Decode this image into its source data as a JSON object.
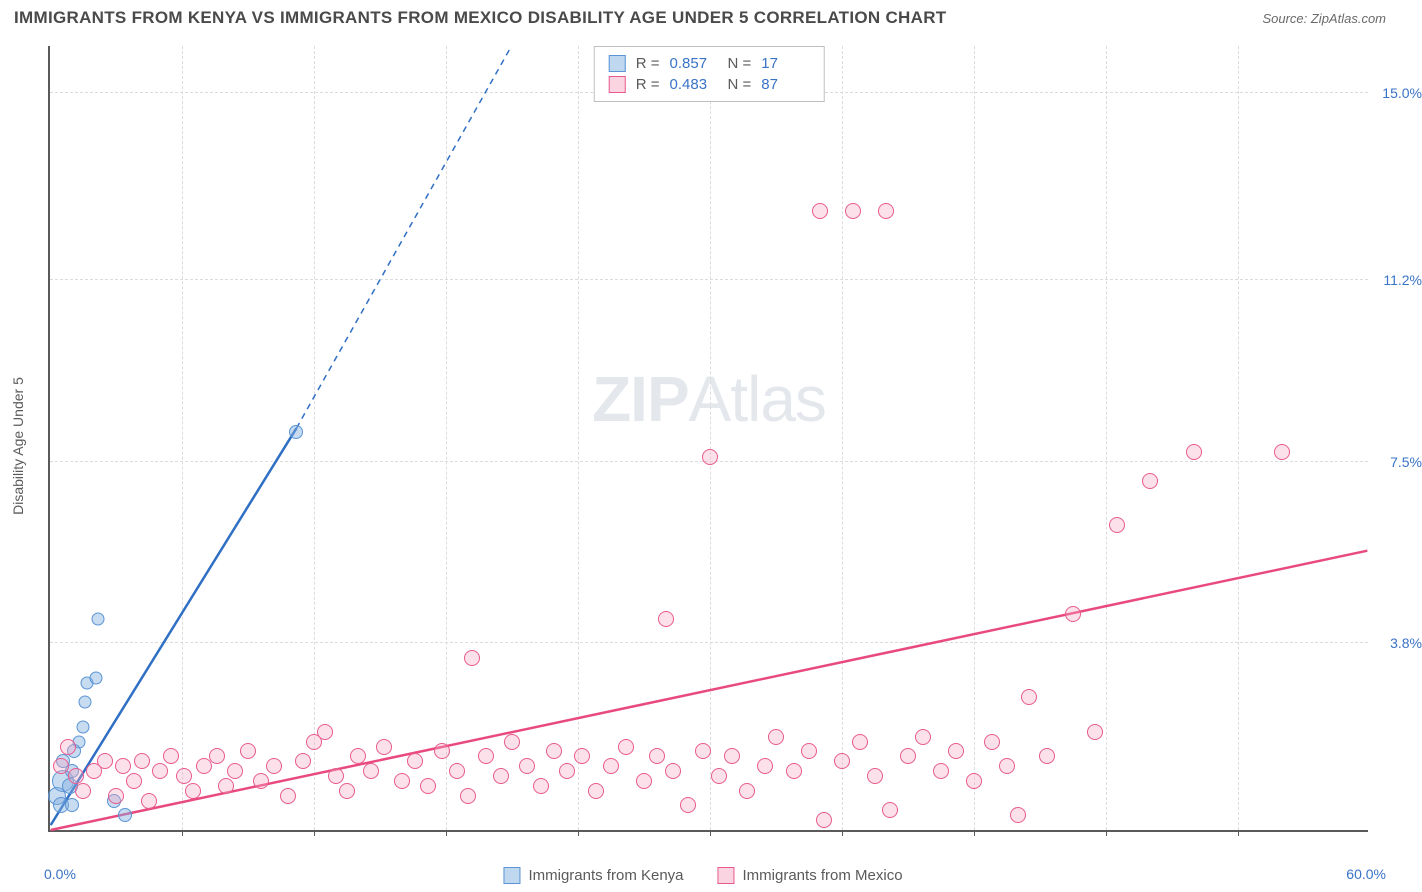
{
  "title": "IMMIGRANTS FROM KENYA VS IMMIGRANTS FROM MEXICO DISABILITY AGE UNDER 5 CORRELATION CHART",
  "source": "Source: ZipAtlas.com",
  "y_axis_label": "Disability Age Under 5",
  "watermark_a": "ZIP",
  "watermark_b": "Atlas",
  "chart": {
    "type": "scatter",
    "xlim": [
      0,
      60
    ],
    "ylim": [
      0,
      16
    ],
    "x_min_label": "0.0%",
    "x_max_label": "60.0%",
    "y_ticks": [
      {
        "v": 3.8,
        "label": "3.8%"
      },
      {
        "v": 7.5,
        "label": "7.5%"
      },
      {
        "v": 11.2,
        "label": "11.2%"
      },
      {
        "v": 15.0,
        "label": "15.0%"
      }
    ],
    "x_tick_positions": [
      6,
      12,
      18,
      24,
      30,
      36,
      42,
      48,
      54
    ],
    "background_color": "#ffffff",
    "grid_color": "#dcdcdc",
    "series": [
      {
        "name": "Immigrants from Kenya",
        "color_fill": "rgba(130,175,225,0.45)",
        "color_stroke": "#5a94d4",
        "marker_size": 14,
        "R": "0.857",
        "N": "17",
        "trend": {
          "x1": 0,
          "y1": 0.1,
          "x2": 11.2,
          "y2": 8.2,
          "x2_ext": 21,
          "y2_ext": 16,
          "color": "#2f6fc4",
          "width": 2.5
        },
        "points": [
          {
            "x": 0.3,
            "y": 0.7,
            "s": 18
          },
          {
            "x": 0.5,
            "y": 0.5,
            "s": 16
          },
          {
            "x": 0.6,
            "y": 1.0,
            "s": 22
          },
          {
            "x": 0.6,
            "y": 1.4,
            "s": 14
          },
          {
            "x": 0.9,
            "y": 0.9,
            "s": 16
          },
          {
            "x": 1.0,
            "y": 1.2,
            "s": 14
          },
          {
            "x": 1.0,
            "y": 0.5,
            "s": 14
          },
          {
            "x": 1.3,
            "y": 1.8,
            "s": 13
          },
          {
            "x": 1.5,
            "y": 2.1,
            "s": 13
          },
          {
            "x": 1.6,
            "y": 2.6,
            "s": 13
          },
          {
            "x": 1.7,
            "y": 3.0,
            "s": 13
          },
          {
            "x": 2.1,
            "y": 3.1,
            "s": 13
          },
          {
            "x": 2.2,
            "y": 4.3,
            "s": 13
          },
          {
            "x": 2.9,
            "y": 0.6,
            "s": 14
          },
          {
            "x": 3.4,
            "y": 0.3,
            "s": 14
          },
          {
            "x": 11.2,
            "y": 8.1,
            "s": 14
          },
          {
            "x": 1.1,
            "y": 1.6,
            "s": 14
          }
        ]
      },
      {
        "name": "Immigrants from Mexico",
        "color_fill": "rgba(245,170,195,0.35)",
        "color_stroke": "#e85a8f",
        "marker_size": 16,
        "R": "0.483",
        "N": "87",
        "trend": {
          "x1": 0,
          "y1": 0,
          "x2": 60,
          "y2": 5.7,
          "color": "#e84a7f",
          "width": 2.5
        },
        "points": [
          {
            "x": 0.5,
            "y": 1.3
          },
          {
            "x": 0.8,
            "y": 1.7
          },
          {
            "x": 1.2,
            "y": 1.1
          },
          {
            "x": 1.5,
            "y": 0.8
          },
          {
            "x": 2.0,
            "y": 1.2
          },
          {
            "x": 2.5,
            "y": 1.4
          },
          {
            "x": 3.0,
            "y": 0.7
          },
          {
            "x": 3.3,
            "y": 1.3
          },
          {
            "x": 3.8,
            "y": 1.0
          },
          {
            "x": 4.2,
            "y": 1.4
          },
          {
            "x": 4.5,
            "y": 0.6
          },
          {
            "x": 5.0,
            "y": 1.2
          },
          {
            "x": 5.5,
            "y": 1.5
          },
          {
            "x": 6.1,
            "y": 1.1
          },
          {
            "x": 6.5,
            "y": 0.8
          },
          {
            "x": 7.0,
            "y": 1.3
          },
          {
            "x": 7.6,
            "y": 1.5
          },
          {
            "x": 8.0,
            "y": 0.9
          },
          {
            "x": 8.4,
            "y": 1.2
          },
          {
            "x": 9.0,
            "y": 1.6
          },
          {
            "x": 9.6,
            "y": 1.0
          },
          {
            "x": 10.2,
            "y": 1.3
          },
          {
            "x": 10.8,
            "y": 0.7
          },
          {
            "x": 11.5,
            "y": 1.4
          },
          {
            "x": 12.0,
            "y": 1.8
          },
          {
            "x": 12.5,
            "y": 2.0
          },
          {
            "x": 13.0,
            "y": 1.1
          },
          {
            "x": 13.5,
            "y": 0.8
          },
          {
            "x": 14.0,
            "y": 1.5
          },
          {
            "x": 14.6,
            "y": 1.2
          },
          {
            "x": 15.2,
            "y": 1.7
          },
          {
            "x": 16.0,
            "y": 1.0
          },
          {
            "x": 16.6,
            "y": 1.4
          },
          {
            "x": 17.2,
            "y": 0.9
          },
          {
            "x": 17.8,
            "y": 1.6
          },
          {
            "x": 18.5,
            "y": 1.2
          },
          {
            "x": 19.0,
            "y": 0.7
          },
          {
            "x": 19.2,
            "y": 3.5
          },
          {
            "x": 19.8,
            "y": 1.5
          },
          {
            "x": 20.5,
            "y": 1.1
          },
          {
            "x": 21.0,
            "y": 1.8
          },
          {
            "x": 21.7,
            "y": 1.3
          },
          {
            "x": 22.3,
            "y": 0.9
          },
          {
            "x": 22.9,
            "y": 1.6
          },
          {
            "x": 23.5,
            "y": 1.2
          },
          {
            "x": 24.2,
            "y": 1.5
          },
          {
            "x": 24.8,
            "y": 0.8
          },
          {
            "x": 25.5,
            "y": 1.3
          },
          {
            "x": 26.2,
            "y": 1.7
          },
          {
            "x": 27.0,
            "y": 1.0
          },
          {
            "x": 27.6,
            "y": 1.5
          },
          {
            "x": 28.0,
            "y": 4.3
          },
          {
            "x": 28.3,
            "y": 1.2
          },
          {
            "x": 29.0,
            "y": 0.5
          },
          {
            "x": 29.7,
            "y": 1.6
          },
          {
            "x": 30.0,
            "y": 7.6
          },
          {
            "x": 30.4,
            "y": 1.1
          },
          {
            "x": 31.0,
            "y": 1.5
          },
          {
            "x": 31.7,
            "y": 0.8
          },
          {
            "x": 32.5,
            "y": 1.3
          },
          {
            "x": 33.0,
            "y": 1.9
          },
          {
            "x": 33.8,
            "y": 1.2
          },
          {
            "x": 34.5,
            "y": 1.6
          },
          {
            "x": 35.0,
            "y": 12.6
          },
          {
            "x": 35.2,
            "y": 0.2
          },
          {
            "x": 36.0,
            "y": 1.4
          },
          {
            "x": 36.5,
            "y": 12.6
          },
          {
            "x": 36.8,
            "y": 1.8
          },
          {
            "x": 37.5,
            "y": 1.1
          },
          {
            "x": 38.0,
            "y": 12.6
          },
          {
            "x": 38.2,
            "y": 0.4
          },
          {
            "x": 39.0,
            "y": 1.5
          },
          {
            "x": 39.7,
            "y": 1.9
          },
          {
            "x": 40.5,
            "y": 1.2
          },
          {
            "x": 41.2,
            "y": 1.6
          },
          {
            "x": 42.0,
            "y": 1.0
          },
          {
            "x": 42.8,
            "y": 1.8
          },
          {
            "x": 43.5,
            "y": 1.3
          },
          {
            "x": 44.0,
            "y": 0.3
          },
          {
            "x": 44.5,
            "y": 2.7
          },
          {
            "x": 45.3,
            "y": 1.5
          },
          {
            "x": 46.5,
            "y": 4.4
          },
          {
            "x": 47.5,
            "y": 2.0
          },
          {
            "x": 48.5,
            "y": 6.2
          },
          {
            "x": 50.0,
            "y": 7.1
          },
          {
            "x": 52.0,
            "y": 7.7
          },
          {
            "x": 56.0,
            "y": 7.7
          }
        ]
      }
    ]
  },
  "legend": {
    "series1_label": "Immigrants from Kenya",
    "series2_label": "Immigrants from Mexico"
  },
  "stats_labels": {
    "R": "R =",
    "N": "N ="
  }
}
